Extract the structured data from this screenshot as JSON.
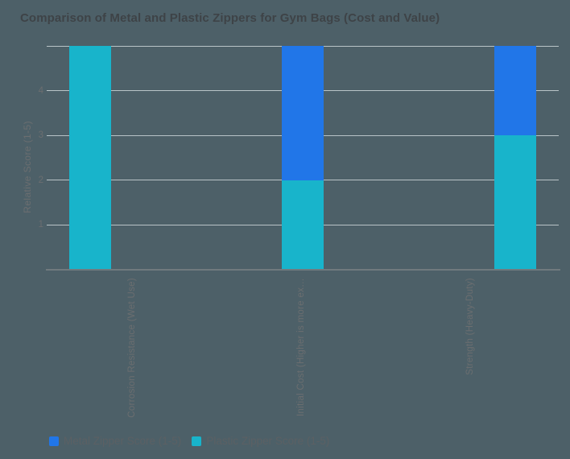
{
  "colors": {
    "background": "#4d6068",
    "gridline": "#b9c4c7",
    "axis_line": "#707a7e",
    "title_text": "#3e4347",
    "axis_text": "#6b6e70",
    "legend_text": "#5b6064",
    "metal_blue": "#2176e8",
    "plastic_cyan": "#18b4cb"
  },
  "chart_data": {
    "type": "bar",
    "stacked": true,
    "title": "Comparison of Metal and Plastic Zippers for Gym Bags (Cost and Value)",
    "categories": [
      "Corrosion Resistance (Wet Use)",
      "Initial Cost (Higher is more ex…",
      "Strength (Heavy-Duty)"
    ],
    "series": [
      {
        "name": "Metal Zipper Score (1-5)",
        "color_key": "metal_blue",
        "values": [
          0,
          3,
          2
        ]
      },
      {
        "name": "Plastic Zipper Score (1-5)",
        "color_key": "plastic_cyan",
        "values": [
          5,
          2,
          3
        ]
      }
    ],
    "stack_order_bottom_to_top": [
      "Plastic Zipper Score (1-5)",
      "Metal Zipper Score (1-5)"
    ],
    "xlabel": "",
    "ylabel": "Relative Score (1-5)",
    "ylim": [
      0,
      5
    ],
    "yticks_labeled": [
      1,
      2,
      3,
      4
    ],
    "gridline_values": [
      1,
      2,
      3,
      4,
      5
    ],
    "grid": true,
    "legend_position": "bottom-left"
  }
}
